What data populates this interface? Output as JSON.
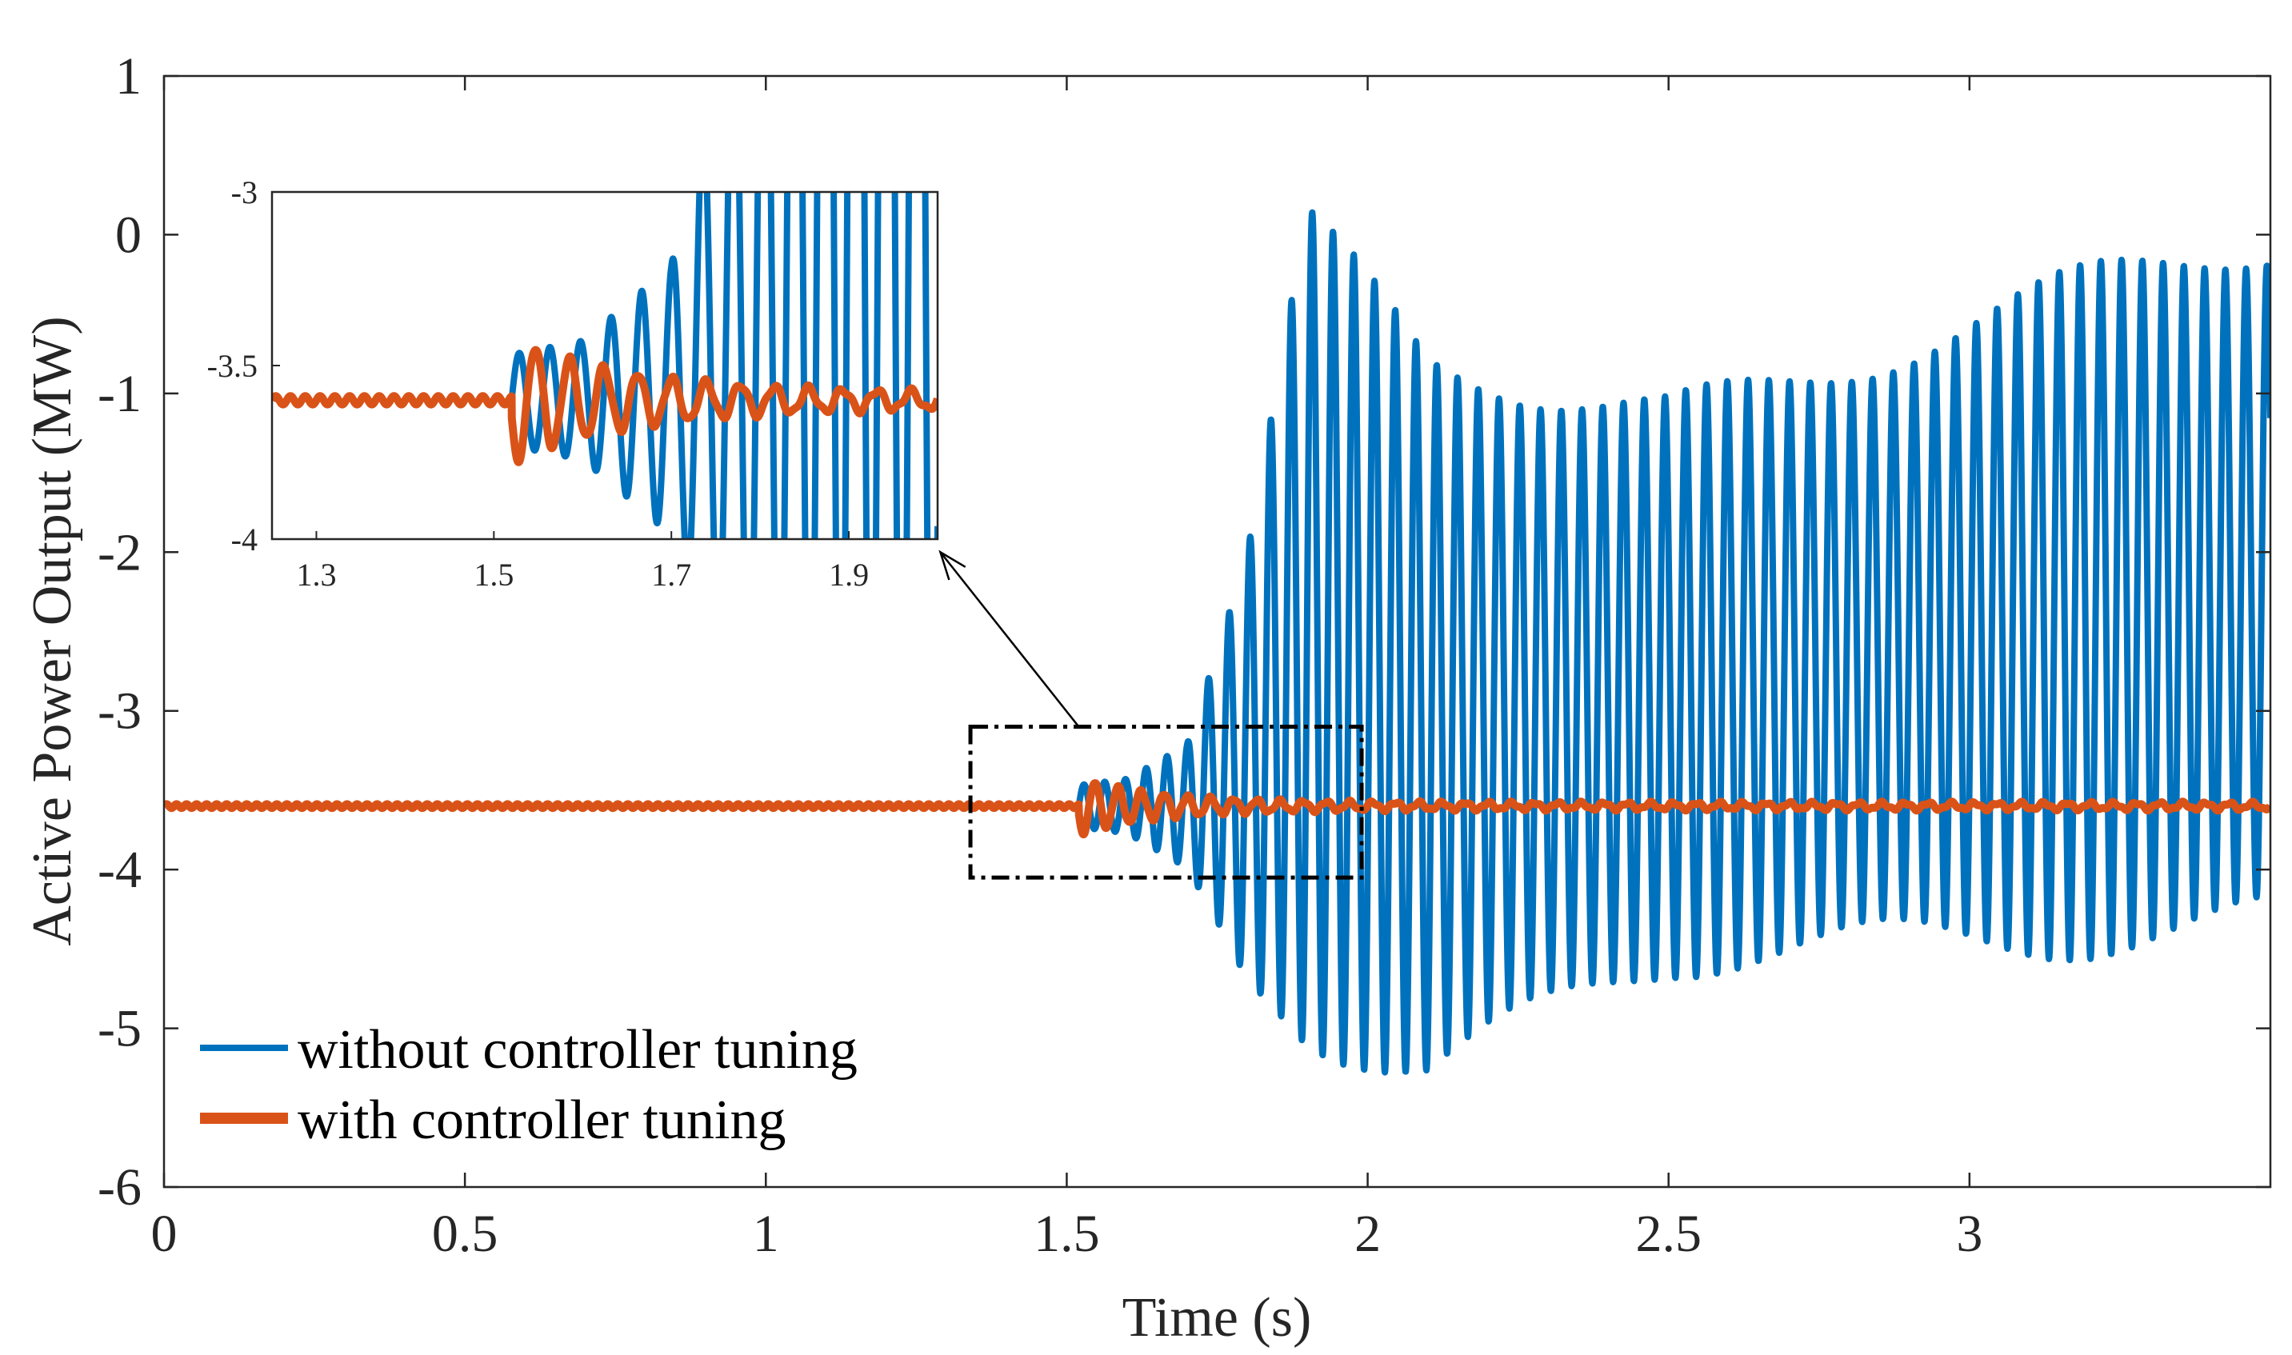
{
  "chart_data": {
    "type": "line",
    "xlabel": "Time (s)",
    "ylabel": "Active Power Output (MW)",
    "xlim": [
      0,
      3.5
    ],
    "ylim": [
      -6,
      1
    ],
    "xticks": [
      0,
      0.5,
      1,
      1.5,
      2,
      2.5,
      3
    ],
    "xtick_labels": [
      "0",
      "0.5",
      "1",
      "1.5",
      "2",
      "2.5",
      "3"
    ],
    "yticks": [
      1,
      0,
      -1,
      -2,
      -3,
      -4,
      -5,
      -6
    ],
    "ytick_labels": [
      "1",
      "0",
      "-1",
      "-2",
      "-3",
      "-4",
      "-5",
      "-6"
    ],
    "grid": false,
    "legend_position": "bottom-left",
    "series": [
      {
        "name": "without controller tuning",
        "color": "#0072BD",
        "baseline": -3.6,
        "disturbance_time": 1.52,
        "oscillation_frequency_hz": 29,
        "envelope": [
          {
            "t": 1.52,
            "upper": -3.45,
            "lower": -3.75
          },
          {
            "t": 1.6,
            "upper": -3.4,
            "lower": -3.8
          },
          {
            "t": 1.7,
            "upper": -3.15,
            "lower": -4.05
          },
          {
            "t": 1.8,
            "upper": -1.9,
            "lower": -4.8
          },
          {
            "t": 1.9,
            "upper": 0.2,
            "lower": -5.15
          },
          {
            "t": 2.1,
            "upper": -0.6,
            "lower": -5.45
          },
          {
            "t": 2.5,
            "upper": -0.75,
            "lower": -4.95
          },
          {
            "t": 3.0,
            "upper": -0.3,
            "lower": -4.7
          },
          {
            "t": 3.5,
            "upper": 0.1,
            "lower": -4.45
          }
        ]
      },
      {
        "name": "with controller tuning",
        "color": "#D95319",
        "baseline": -3.6,
        "disturbance_time": 1.52,
        "min_value": -3.76,
        "max_value": -3.44,
        "settle_time": 1.9
      }
    ],
    "annotations": [
      {
        "type": "zoom-box",
        "x_range": [
          1.34,
          1.99
        ],
        "y_range": [
          -4.05,
          -3.1
        ]
      },
      {
        "type": "arrow",
        "from_x": 1.52,
        "from_y": -3.1,
        "to_x": 1.29,
        "to_y": -2.0
      }
    ],
    "inset": {
      "xlim": [
        1.25,
        2.0
      ],
      "ylim": [
        -4,
        -3
      ],
      "xticks": [
        1.3,
        1.5,
        1.7,
        1.9
      ],
      "xtick_labels": [
        "1.3",
        "1.5",
        "1.7",
        "1.9"
      ],
      "yticks": [
        -3,
        -3.5,
        -4
      ],
      "ytick_labels": [
        "-3",
        "-3.5",
        "-4"
      ]
    }
  },
  "colors": {
    "axis": "#262626",
    "blue": "#0072BD",
    "orange": "#D95319"
  }
}
